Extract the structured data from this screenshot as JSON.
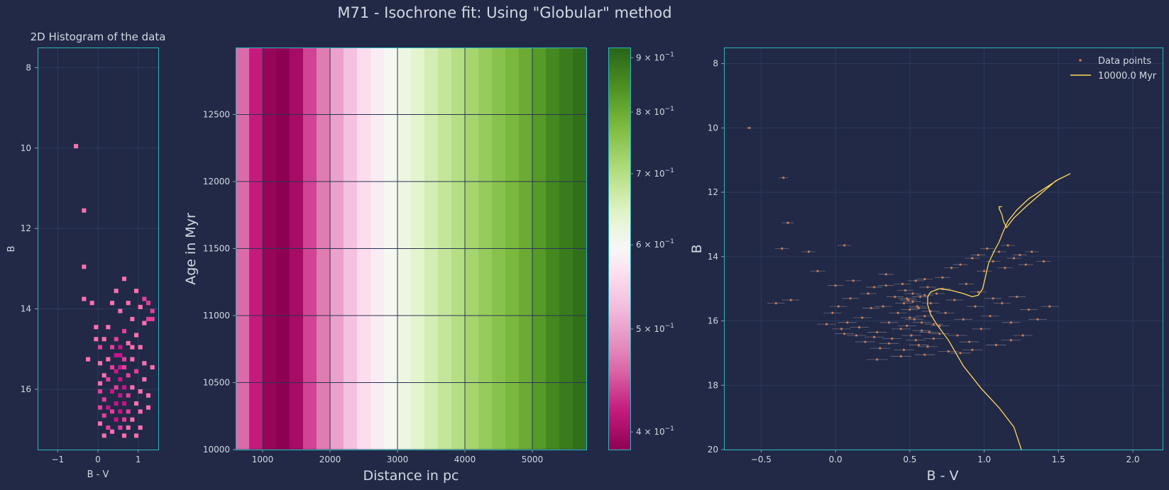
{
  "figure_title": "M71 - Isochrone fit: Using \"Globular\" method",
  "colors": {
    "background": "#212946",
    "axes_frame": "#2fb5bf",
    "text": "#d4d8e2",
    "histogram_low": "#ff6fb2",
    "histogram_high": "#c7158a",
    "data_points": "#c97b52",
    "isochrone": "#ffd75c"
  },
  "chart_data": [
    {
      "type": "heatmap",
      "title": "2D Histogram of the data",
      "xlabel": "B - V",
      "ylabel": "B",
      "xlim": [
        -1.5,
        1.5
      ],
      "ylim": [
        17.5,
        7.5
      ],
      "y_inverted": true,
      "xticks": [
        "-1",
        "0",
        "1"
      ],
      "yticks": [
        "8",
        "10",
        "12",
        "14",
        "16"
      ],
      "grid": true,
      "cells": [
        [
          -0.55,
          9.95,
          1
        ],
        [
          -0.35,
          11.55,
          1
        ],
        [
          -0.35,
          12.95,
          1
        ],
        [
          0.65,
          13.25,
          1
        ],
        [
          0.45,
          13.55,
          1
        ],
        [
          0.95,
          13.55,
          1
        ],
        [
          1.15,
          13.75,
          2
        ],
        [
          -0.35,
          13.75,
          1
        ],
        [
          -0.15,
          13.85,
          1
        ],
        [
          0.35,
          13.85,
          1
        ],
        [
          0.75,
          13.85,
          1
        ],
        [
          1.05,
          13.95,
          1
        ],
        [
          1.25,
          13.85,
          2
        ],
        [
          1.35,
          14.05,
          2
        ],
        [
          1.35,
          14.25,
          2
        ],
        [
          1.25,
          14.25,
          2
        ],
        [
          1.15,
          14.35,
          1
        ],
        [
          0.55,
          14.05,
          1
        ],
        [
          0.85,
          14.25,
          1
        ],
        [
          -0.05,
          14.45,
          1
        ],
        [
          0.25,
          14.45,
          1
        ],
        [
          0.65,
          14.55,
          2
        ],
        [
          0.95,
          14.65,
          1
        ],
        [
          -0.05,
          14.75,
          1
        ],
        [
          0.15,
          14.75,
          1
        ],
        [
          0.45,
          14.75,
          2
        ],
        [
          0.75,
          14.85,
          1
        ],
        [
          0.05,
          14.95,
          2
        ],
        [
          0.35,
          14.95,
          2
        ],
        [
          0.55,
          14.95,
          3
        ],
        [
          0.85,
          14.95,
          1
        ],
        [
          1.05,
          14.95,
          1
        ],
        [
          0.45,
          15.15,
          3
        ],
        [
          0.55,
          15.15,
          3
        ],
        [
          0.65,
          15.25,
          2
        ],
        [
          -0.25,
          15.25,
          1
        ],
        [
          0.25,
          15.25,
          1
        ],
        [
          0.85,
          15.25,
          1
        ],
        [
          1.15,
          15.35,
          1
        ],
        [
          0.05,
          15.35,
          1
        ],
        [
          0.55,
          15.45,
          3
        ],
        [
          0.45,
          15.55,
          3
        ],
        [
          0.65,
          15.45,
          2
        ],
        [
          0.35,
          15.45,
          2
        ],
        [
          1.35,
          15.45,
          1
        ],
        [
          0.95,
          15.55,
          2
        ],
        [
          0.15,
          15.65,
          1
        ],
        [
          0.55,
          15.75,
          3
        ],
        [
          0.75,
          15.65,
          2
        ],
        [
          0.25,
          15.75,
          2
        ],
        [
          1.15,
          15.75,
          1
        ],
        [
          0.05,
          15.85,
          1
        ],
        [
          0.45,
          15.95,
          2
        ],
        [
          0.65,
          15.95,
          3
        ],
        [
          0.85,
          15.95,
          1
        ],
        [
          0.05,
          16.05,
          2
        ],
        [
          0.35,
          16.05,
          3
        ],
        [
          0.55,
          16.15,
          3
        ],
        [
          0.75,
          16.15,
          2
        ],
        [
          1.05,
          16.05,
          1
        ],
        [
          1.25,
          16.15,
          1
        ],
        [
          0.15,
          16.25,
          2
        ],
        [
          0.45,
          16.35,
          3
        ],
        [
          0.65,
          16.35,
          3
        ],
        [
          0.95,
          16.35,
          1
        ],
        [
          0.05,
          16.45,
          2
        ],
        [
          0.25,
          16.45,
          3
        ],
        [
          0.35,
          16.55,
          2
        ],
        [
          0.55,
          16.55,
          3
        ],
        [
          0.75,
          16.55,
          2
        ],
        [
          1.05,
          16.55,
          1
        ],
        [
          1.25,
          16.45,
          1
        ],
        [
          0.15,
          16.65,
          2
        ],
        [
          0.45,
          16.75,
          3
        ],
        [
          0.65,
          16.75,
          2
        ],
        [
          0.85,
          16.75,
          1
        ],
        [
          0.05,
          16.85,
          1
        ],
        [
          0.25,
          16.95,
          2
        ],
        [
          0.55,
          16.95,
          2
        ],
        [
          0.75,
          16.95,
          1
        ],
        [
          1.05,
          16.95,
          1
        ],
        [
          0.35,
          17.05,
          1
        ],
        [
          0.15,
          17.15,
          1
        ],
        [
          0.65,
          17.15,
          1
        ],
        [
          0.95,
          17.15,
          1
        ]
      ]
    },
    {
      "type": "heatmap",
      "xlabel": "Distance in pc",
      "ylabel": "Age in Myr",
      "xlim": [
        600,
        5800
      ],
      "ylim": [
        10000,
        13000
      ],
      "xticks": [
        1000,
        2000,
        3000,
        4000,
        5000
      ],
      "yticks": [
        10000,
        10500,
        11000,
        11500,
        12000,
        12500
      ],
      "grid": true,
      "column_edges": [
        600,
        800,
        1000,
        1200,
        1400,
        1600,
        1800,
        2000,
        2200,
        2400,
        2600,
        2800,
        3000,
        3200,
        3400,
        3600,
        3800,
        4000,
        4200,
        4400,
        4600,
        4800,
        5000,
        5200,
        5400,
        5600,
        5800
      ],
      "column_values": [
        0.46,
        0.42,
        0.39,
        0.385,
        0.4,
        0.44,
        0.47,
        0.5,
        0.53,
        0.56,
        0.58,
        0.6,
        0.62,
        0.64,
        0.66,
        0.68,
        0.7,
        0.72,
        0.74,
        0.76,
        0.78,
        0.8,
        0.83,
        0.86,
        0.88,
        0.9
      ],
      "colorbar": {
        "scale": "log",
        "range": [
          0.385,
          0.92
        ],
        "tick_values": [
          0.4,
          0.5,
          0.6,
          0.7,
          0.8,
          0.9
        ],
        "tick_mantissa": [
          "4",
          "5",
          "6",
          "7",
          "8",
          "9"
        ],
        "tick_base": "× 10",
        "tick_exponent": "−1",
        "colormap": "PiYG"
      }
    },
    {
      "type": "scatter",
      "xlabel": "B - V",
      "ylabel": "B",
      "xlim": [
        -0.75,
        2.2
      ],
      "ylim": [
        20,
        7.5
      ],
      "y_inverted": true,
      "xticks": [
        "−0.5",
        "0.0",
        "0.5",
        "1.0",
        "1.5",
        "2.0"
      ],
      "yticks": [
        "8",
        "10",
        "12",
        "14",
        "16",
        "18",
        "20"
      ],
      "grid": true,
      "legend_position": "top-right",
      "series": [
        {
          "name": "Data points",
          "kind": "errorbar-scatter",
          "points": [
            [
              -0.58,
              10.0
            ],
            [
              -0.35,
              11.55
            ],
            [
              -0.32,
              12.95
            ],
            [
              -0.18,
              13.85
            ],
            [
              -0.36,
              13.75
            ],
            [
              -0.4,
              15.45
            ],
            [
              -0.3,
              15.35
            ],
            [
              -0.12,
              14.45
            ],
            [
              -0.02,
              15.75
            ],
            [
              0.06,
              13.65
            ],
            [
              0.0,
              14.9
            ],
            [
              0.02,
              15.55
            ],
            [
              0.08,
              16.05
            ],
            [
              0.04,
              16.25
            ],
            [
              0.1,
              15.3
            ],
            [
              0.12,
              14.75
            ],
            [
              0.14,
              16.45
            ],
            [
              0.18,
              15.9
            ],
            [
              0.2,
              16.65
            ],
            [
              0.22,
              15.15
            ],
            [
              0.26,
              14.95
            ],
            [
              0.28,
              16.35
            ],
            [
              0.3,
              16.85
            ],
            [
              0.32,
              15.55
            ],
            [
              0.34,
              14.55
            ],
            [
              0.36,
              16.05
            ],
            [
              0.38,
              16.55
            ],
            [
              0.4,
              15.25
            ],
            [
              0.42,
              15.75
            ],
            [
              0.44,
              16.25
            ],
            [
              0.45,
              14.85
            ],
            [
              0.46,
              15.45
            ],
            [
              0.47,
              15.05
            ],
            [
              0.48,
              16.15
            ],
            [
              0.49,
              15.35
            ],
            [
              0.5,
              15.65
            ],
            [
              0.51,
              16.45
            ],
            [
              0.52,
              15.15
            ],
            [
              0.53,
              15.95
            ],
            [
              0.54,
              14.75
            ],
            [
              0.55,
              15.55
            ],
            [
              0.56,
              16.75
            ],
            [
              0.57,
              15.25
            ],
            [
              0.58,
              16.05
            ],
            [
              0.6,
              15.85
            ],
            [
              0.62,
              14.95
            ],
            [
              0.63,
              16.35
            ],
            [
              0.64,
              15.45
            ],
            [
              0.66,
              16.55
            ],
            [
              0.68,
              15.15
            ],
            [
              0.7,
              16.15
            ],
            [
              0.72,
              14.65
            ],
            [
              0.74,
              15.75
            ],
            [
              0.76,
              16.95
            ],
            [
              0.78,
              14.35
            ],
            [
              0.8,
              15.35
            ],
            [
              0.82,
              16.45
            ],
            [
              0.84,
              14.25
            ],
            [
              0.86,
              15.95
            ],
            [
              0.88,
              14.85
            ],
            [
              0.9,
              16.65
            ],
            [
              0.92,
              14.05
            ],
            [
              0.94,
              15.55
            ],
            [
              0.96,
              13.95
            ],
            [
              0.98,
              16.25
            ],
            [
              1.0,
              14.45
            ],
            [
              1.02,
              13.75
            ],
            [
              1.04,
              15.85
            ],
            [
              1.06,
              14.15
            ],
            [
              1.08,
              16.75
            ],
            [
              1.1,
              13.85
            ],
            [
              1.12,
              15.45
            ],
            [
              1.14,
              14.35
            ],
            [
              1.16,
              13.65
            ],
            [
              1.18,
              16.05
            ],
            [
              1.2,
              14.05
            ],
            [
              1.22,
              15.25
            ],
            [
              1.24,
              13.95
            ],
            [
              1.26,
              16.45
            ],
            [
              1.28,
              14.25
            ],
            [
              1.3,
              15.65
            ],
            [
              1.32,
              13.85
            ],
            [
              1.36,
              15.95
            ],
            [
              1.4,
              14.15
            ],
            [
              1.44,
              15.55
            ],
            [
              0.48,
              15.3
            ],
            [
              0.52,
              15.4
            ],
            [
              0.56,
              15.6
            ],
            [
              0.6,
              15.2
            ],
            [
              0.64,
              15.7
            ],
            [
              0.5,
              15.9
            ],
            [
              0.58,
              16.3
            ],
            [
              0.66,
              16.1
            ],
            [
              0.54,
              16.6
            ],
            [
              0.62,
              16.8
            ],
            [
              0.7,
              16.4
            ],
            [
              0.46,
              16.9
            ],
            [
              0.36,
              16.7
            ],
            [
              0.26,
              16.5
            ],
            [
              0.16,
              16.2
            ],
            [
              0.24,
              15.6
            ],
            [
              0.72,
              15.0
            ],
            [
              0.34,
              14.9
            ],
            [
              0.6,
              14.7
            ],
            [
              0.96,
              15.1
            ],
            [
              1.06,
              15.3
            ],
            [
              1.18,
              16.6
            ],
            [
              0.06,
              16.4
            ],
            [
              -0.06,
              16.1
            ],
            [
              0.92,
              16.9
            ],
            [
              0.84,
              17.0
            ],
            [
              0.44,
              17.1
            ],
            [
              0.6,
              17.05
            ],
            [
              0.28,
              17.2
            ]
          ]
        },
        {
          "name": "10000.0 Myr",
          "kind": "line",
          "points": [
            [
              1.25,
              20.0
            ],
            [
              1.2,
              19.3
            ],
            [
              1.1,
              18.7
            ],
            [
              0.98,
              18.1
            ],
            [
              0.86,
              17.4
            ],
            [
              0.76,
              16.6
            ],
            [
              0.68,
              16.1
            ],
            [
              0.64,
              15.8
            ],
            [
              0.62,
              15.5
            ],
            [
              0.62,
              15.25
            ],
            [
              0.64,
              15.1
            ],
            [
              0.7,
              15.0
            ],
            [
              0.78,
              15.05
            ],
            [
              0.86,
              15.15
            ],
            [
              0.92,
              15.25
            ],
            [
              0.96,
              15.2
            ],
            [
              0.99,
              15.0
            ],
            [
              1.01,
              14.6
            ],
            [
              1.03,
              14.2
            ],
            [
              1.07,
              13.8
            ],
            [
              1.1,
              13.55
            ],
            [
              1.13,
              13.2
            ],
            [
              1.16,
              12.9
            ],
            [
              1.22,
              12.55
            ],
            [
              1.3,
              12.2
            ],
            [
              1.4,
              11.9
            ],
            [
              1.5,
              11.6
            ],
            [
              1.58,
              11.42
            ],
            [
              1.48,
              11.65
            ],
            [
              1.38,
              12.05
            ],
            [
              1.28,
              12.45
            ],
            [
              1.2,
              12.8
            ],
            [
              1.15,
              13.1
            ],
            [
              1.13,
              12.9
            ],
            [
              1.12,
              12.7
            ],
            [
              1.1,
              12.5
            ],
            [
              1.1,
              12.45
            ],
            [
              1.12,
              12.45
            ]
          ]
        }
      ]
    }
  ]
}
